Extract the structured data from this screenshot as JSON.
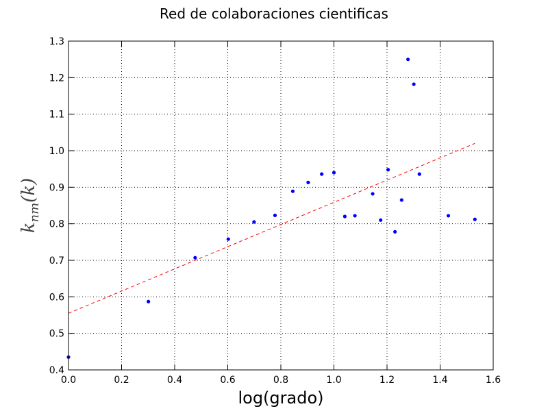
{
  "chart_data": {
    "type": "scatter",
    "title": "Red de colaboraciones cientificas",
    "xlabel": "log(grado)",
    "ylabel": {
      "main": "k",
      "subscript": "nm",
      "suffix": "(k)"
    },
    "xlim": [
      0.0,
      1.6
    ],
    "ylim": [
      0.4,
      1.3
    ],
    "x_ticks": [
      "0.0",
      "0.2",
      "0.4",
      "0.6",
      "0.8",
      "1.0",
      "1.2",
      "1.4",
      "1.6"
    ],
    "y_ticks": [
      "0.4",
      "0.5",
      "0.6",
      "0.7",
      "0.8",
      "0.9",
      "1.0",
      "1.1",
      "1.2",
      "1.3"
    ],
    "grid": true,
    "series": [
      {
        "kind": "points",
        "color": "#0000ff",
        "points": [
          [
            0.0,
            0.435
          ],
          [
            0.301,
            0.587
          ],
          [
            0.477,
            0.707
          ],
          [
            0.602,
            0.758
          ],
          [
            0.699,
            0.805
          ],
          [
            0.778,
            0.823
          ],
          [
            0.845,
            0.889
          ],
          [
            0.903,
            0.913
          ],
          [
            0.954,
            0.936
          ],
          [
            1.0,
            0.94
          ],
          [
            1.041,
            0.82
          ],
          [
            1.079,
            0.822
          ],
          [
            1.146,
            0.882
          ],
          [
            1.176,
            0.81
          ],
          [
            1.204,
            0.948
          ],
          [
            1.23,
            0.778
          ],
          [
            1.255,
            0.865
          ],
          [
            1.279,
            1.25
          ],
          [
            1.301,
            1.182
          ],
          [
            1.322,
            0.936
          ],
          [
            1.431,
            0.822
          ],
          [
            1.531,
            0.812
          ]
        ]
      },
      {
        "kind": "fit-line",
        "color": "#ff0000",
        "linestyle": "dashed",
        "points": [
          [
            0.0,
            0.555
          ],
          [
            1.531,
            1.02
          ]
        ]
      }
    ]
  }
}
